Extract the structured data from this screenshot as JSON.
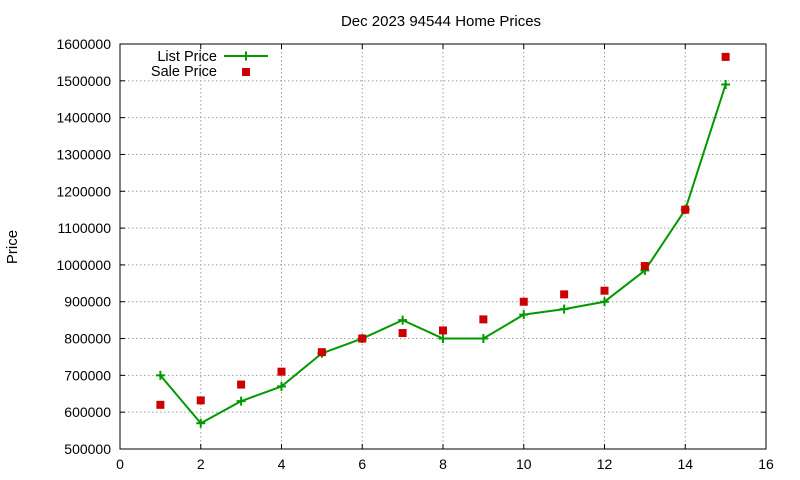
{
  "chart_data": {
    "type": "line",
    "title": "Dec 2023 94544 Home Prices",
    "xlabel": "",
    "ylabel": "Price",
    "xlim": [
      0,
      16
    ],
    "ylim": [
      500000,
      1600000
    ],
    "xticks": [
      0,
      2,
      4,
      6,
      8,
      10,
      12,
      14,
      16
    ],
    "yticks": [
      500000,
      600000,
      700000,
      800000,
      900000,
      1000000,
      1100000,
      1200000,
      1300000,
      1400000,
      1500000,
      1600000
    ],
    "grid": true,
    "legend_position": "top-left",
    "series": [
      {
        "name": "List Price",
        "style": "line-plus",
        "color": "#009900",
        "x": [
          1,
          2,
          3,
          4,
          5,
          6,
          7,
          8,
          9,
          10,
          11,
          12,
          13,
          14,
          15
        ],
        "y": [
          700000,
          570000,
          630000,
          670000,
          760000,
          800000,
          850000,
          800000,
          800000,
          865000,
          880000,
          900000,
          985000,
          1150000,
          1490000
        ]
      },
      {
        "name": "Sale Price",
        "style": "square-points",
        "color": "#cc0000",
        "x": [
          1,
          2,
          3,
          4,
          5,
          6,
          7,
          8,
          9,
          10,
          11,
          12,
          13,
          14,
          15
        ],
        "y": [
          620000,
          632000,
          675000,
          710000,
          763000,
          800000,
          815000,
          822000,
          852000,
          900000,
          920000,
          930000,
          997000,
          1150000,
          1565000
        ]
      }
    ]
  }
}
